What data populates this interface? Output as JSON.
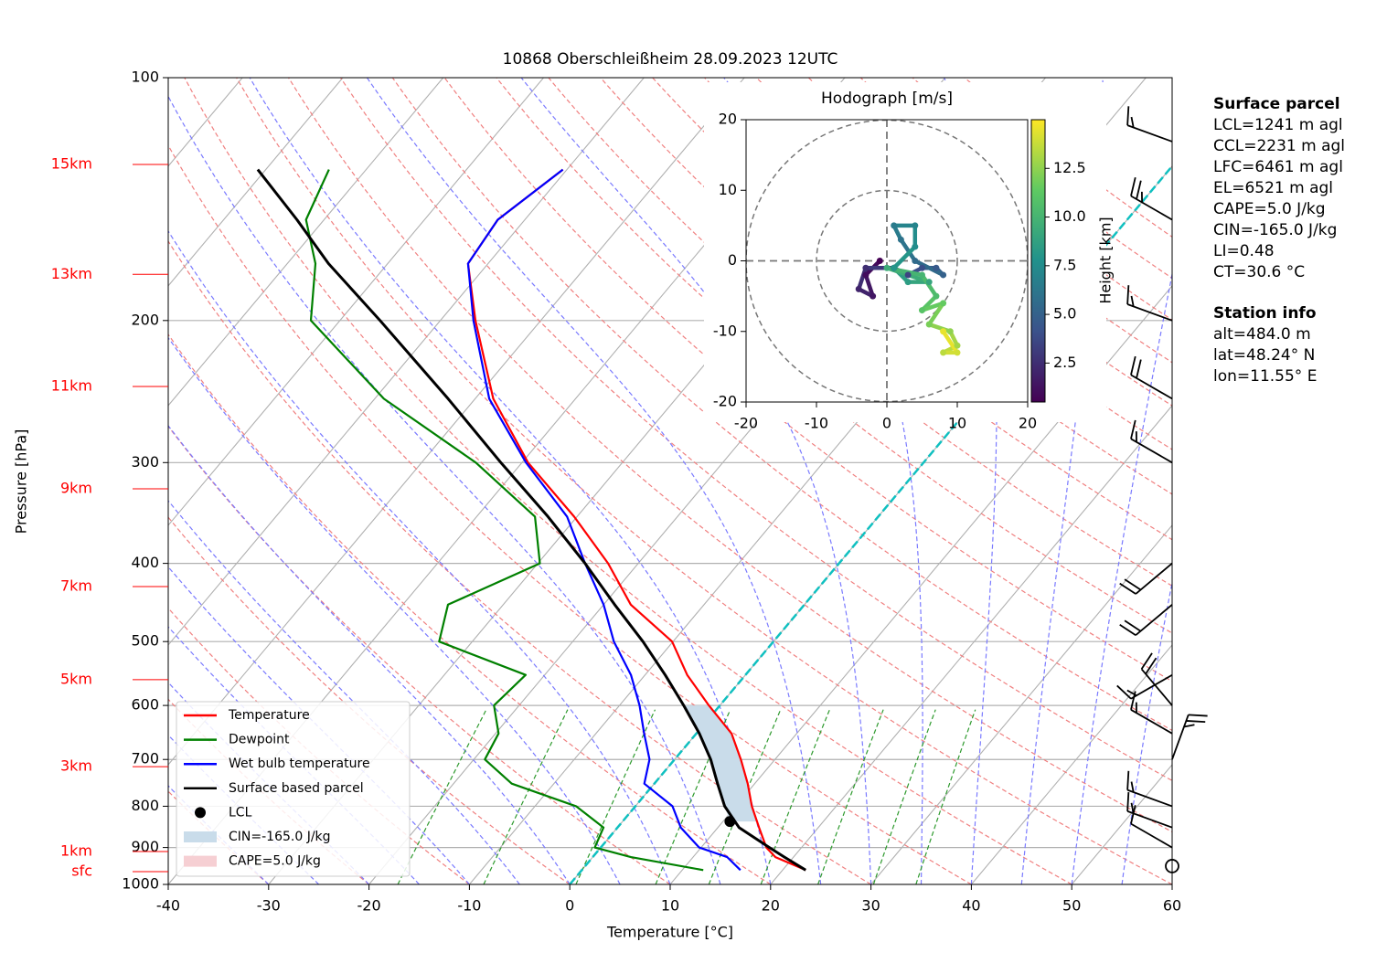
{
  "chart_data": [
    {
      "type": "skewt",
      "title": "10868 Oberschleißheim 28.09.2023 12UTC",
      "xlabel": "Temperature [°C]",
      "ylabel": "Pressure [hPa]",
      "xlim": [
        -40,
        60
      ],
      "xticks": [
        -40,
        -30,
        -20,
        -10,
        0,
        10,
        20,
        30,
        40,
        50,
        60
      ],
      "ylim": [
        1000,
        100
      ],
      "yticks": [
        100,
        200,
        300,
        400,
        500,
        600,
        700,
        800,
        900,
        1000
      ],
      "log_y": true,
      "grid": true,
      "legend": "lower left",
      "pressure": [
        960,
        925,
        900,
        850,
        800,
        750,
        700,
        650,
        600,
        550,
        500,
        450,
        400,
        350,
        300,
        250,
        200,
        170,
        150,
        130
      ],
      "series": [
        {
          "name": "Temperature",
          "color": "#ff0000",
          "values": [
            22.3,
            18.2,
            16.5,
            14.1,
            11.6,
            9.3,
            6.6,
            3.5,
            -1.1,
            -5.8,
            -10.1,
            -17.3,
            -23.0,
            -30.3,
            -39.4,
            -48.2,
            -56.5,
            -62.0,
            -62.7,
            -60.4
          ]
        },
        {
          "name": "Dewpoint",
          "color": "#008000",
          "values": [
            12.1,
            3.8,
            -0.6,
            -1.4,
            -5.9,
            -14.2,
            -18.9,
            -19.7,
            -22.5,
            -21.9,
            -33.3,
            -35.5,
            -29.8,
            -34.2,
            -44.6,
            -59.1,
            -72.9,
            -77.2,
            -81.8,
            -83.7
          ]
        },
        {
          "name": "Wet bulb temperature",
          "color": "#0000ff",
          "values": [
            15.8,
            13.4,
            9.8,
            6.3,
            3.7,
            -1.0,
            -2.5,
            -5.2,
            -8.0,
            -11.4,
            -15.9,
            -20.0,
            -25.3,
            -31.0,
            -39.6,
            -48.6,
            -56.7,
            -62.0,
            -62.7,
            -60.4
          ]
        },
        {
          "name": "Surface based parcel",
          "color": "#000000",
          "values": [
            22.3,
            19.1,
            16.8,
            12.1,
            8.9,
            6.3,
            3.6,
            0.3,
            -3.6,
            -8.0,
            -13.0,
            -18.9,
            -25.3,
            -32.9,
            -42.1,
            -52.7,
            -66.0,
            -75.9,
            -82.7,
            -90.8
          ]
        }
      ],
      "lcl": {
        "name": "LCL",
        "pressure": 835.6,
        "temperature": 10.7,
        "color": "#000000"
      },
      "cin": {
        "name": "CIN=-165.0 J/kg",
        "color": "#c9dcea",
        "pressure_range": [
          835.6,
          600
        ]
      },
      "cape": {
        "name": "CAPE=5.0 J/kg",
        "color": "#f6cfd3"
      },
      "height_levels": {
        "color": "#ff0000",
        "labels": [
          "15km",
          "13km",
          "11km",
          "9km",
          "7km",
          "5km",
          "3km",
          "1km",
          "sfc"
        ],
        "pressure": [
          128.1,
          175.3,
          241.4,
          323.3,
          427.4,
          557.5,
          714.5,
          910.5,
          964
        ]
      },
      "wind_barbs": {
        "pressure": [
          949,
          900,
          850,
          800,
          700,
          650,
          600,
          550,
          450,
          400,
          300,
          250,
          200,
          150,
          120
        ],
        "direction": [
          0,
          300,
          290,
          290,
          20,
          300,
          320,
          240,
          230,
          230,
          300,
          300,
          290,
          300,
          290
        ],
        "speed": [
          0,
          10,
          15,
          15,
          25,
          15,
          20,
          15,
          20,
          20,
          15,
          20,
          15,
          25,
          15
        ]
      }
    },
    {
      "type": "hodograph",
      "title": "Hodograph [m/s]",
      "xlim": [
        -20,
        20
      ],
      "xticks": [
        -20,
        -10,
        0,
        10,
        20
      ],
      "ylim": [
        -20,
        20
      ],
      "yticks": [
        -20,
        -10,
        0,
        10,
        20
      ],
      "rings": [
        10,
        20
      ],
      "colormap": "viridis",
      "clim": [
        0.5,
        15
      ],
      "colorbar_label": "Height [km]",
      "colorbar_ticks": [
        2.5,
        {
          "value": 5,
          "label": "5.0"
        },
        7.5,
        {
          "value": 10,
          "label": "10.0"
        },
        12.5
      ],
      "height": [
        0.5,
        1,
        1.5,
        2,
        2.5,
        3,
        3.5,
        4,
        4.5,
        5,
        5.5,
        6,
        6.5,
        7,
        7.5,
        8,
        8.5,
        9,
        9.5,
        10,
        10.5,
        11,
        11.5,
        12,
        12.5,
        13,
        13.5,
        14,
        14.5
      ],
      "u": [
        -1,
        -3,
        -2,
        -4,
        -3,
        1,
        3,
        5,
        7,
        8,
        4,
        2,
        1,
        4,
        4,
        1,
        3,
        6,
        0,
        5,
        7,
        5,
        8,
        6,
        9,
        10,
        8,
        10,
        8
      ],
      "v": [
        0,
        -2,
        -5,
        -4,
        -1,
        -1,
        -2,
        -1,
        -1,
        -2,
        0,
        3,
        5,
        5,
        2,
        -1,
        -3,
        -3,
        -1,
        -2,
        -5,
        -7,
        -6,
        -9,
        -10,
        -12,
        -13,
        -13,
        -10
      ]
    }
  ],
  "info_panel": [
    {
      "title": "Surface parcel",
      "lines": [
        "LCL=1241 m agl",
        "CCL=2231 m agl",
        "LFC=6461 m agl",
        "EL=6521 m agl",
        "CAPE=5.0 J/kg",
        "CIN=-165.0 J/kg",
        "LI=0.48",
        "CT=30.6 °C"
      ]
    },
    {
      "title": "Station info",
      "lines": [
        "alt=484.0 m",
        "lat=48.24° N",
        "lon=11.55° E"
      ]
    }
  ]
}
